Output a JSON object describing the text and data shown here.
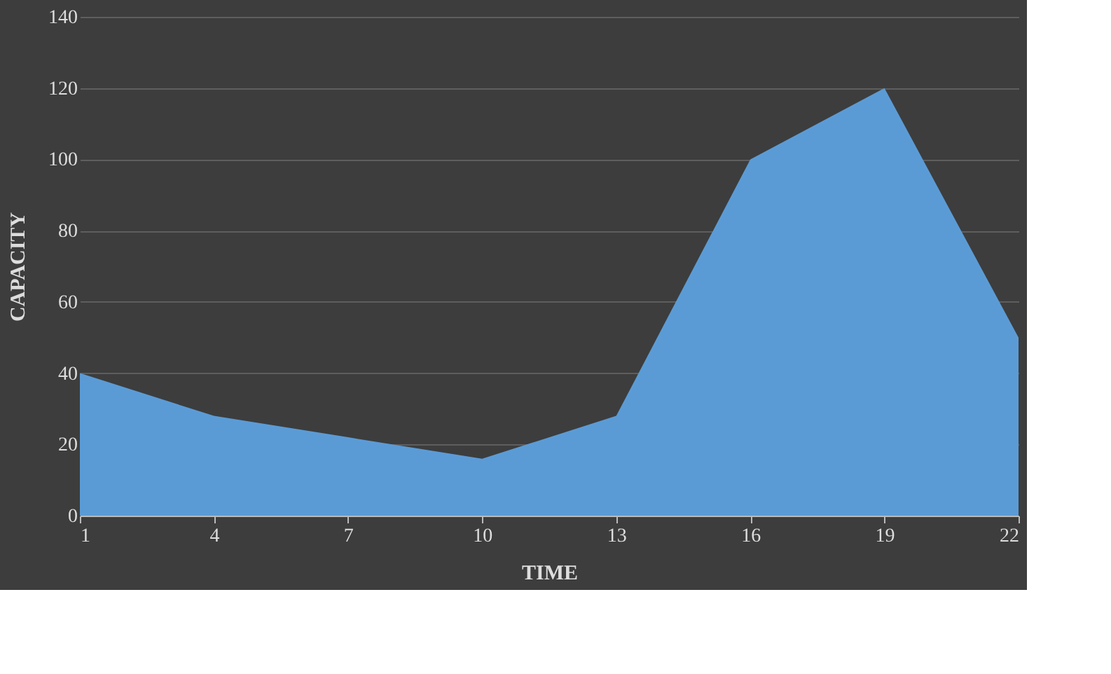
{
  "chart_data": {
    "type": "area",
    "xlabel": "TIME",
    "ylabel": "CAPACITY",
    "x": [
      1,
      4,
      7,
      10,
      13,
      16,
      19,
      22
    ],
    "values": [
      40,
      28,
      22,
      16,
      28,
      100,
      120,
      50
    ],
    "color": "#5b9bd5",
    "xlim": [
      1,
      22
    ],
    "xticks": [
      1,
      4,
      7,
      10,
      13,
      16,
      19,
      22
    ],
    "ylim": [
      0,
      140
    ],
    "yticks": [
      0,
      20,
      40,
      60,
      80,
      100,
      120,
      140
    ],
    "grid": "y"
  }
}
